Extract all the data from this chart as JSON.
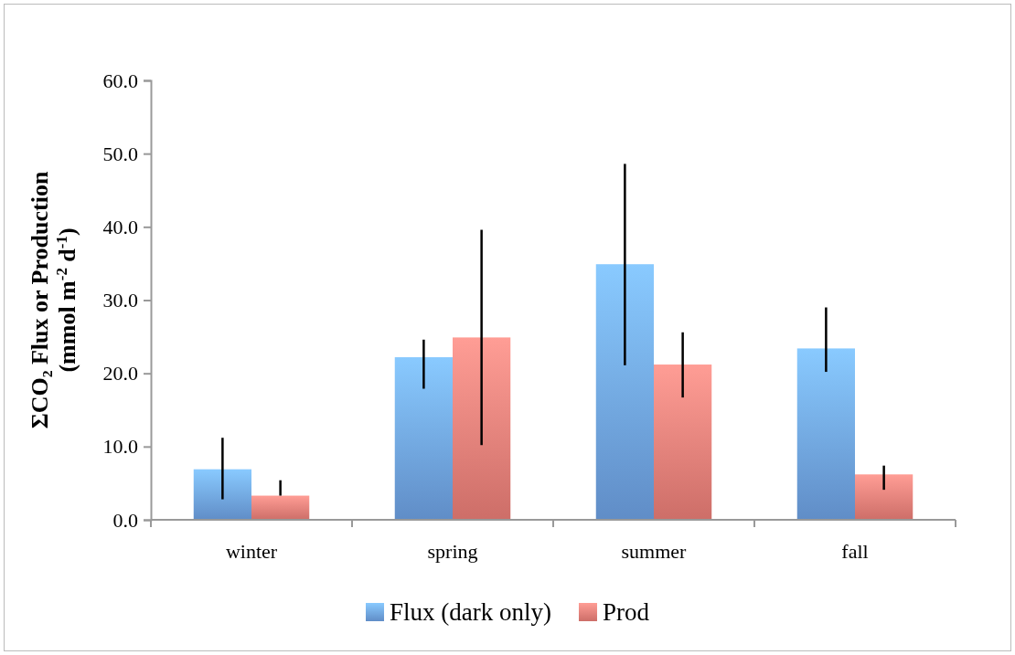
{
  "chart_data": {
    "type": "bar",
    "ylabel": "ΣCO₂ Flux or Production\n(mmol m$^{-2}$ d$^{-1}$)",
    "categories": [
      "winter",
      "spring",
      "summer",
      "fall"
    ],
    "series": [
      {
        "name": "Flux (dark only)",
        "color": "#6fa3e6",
        "values": [
          6.9,
          22.2,
          34.9,
          23.4
        ],
        "errors": [
          [
            2.8,
            11.2
          ],
          [
            17.9,
            24.6
          ],
          [
            21.1,
            48.6
          ],
          [
            20.2,
            29.0
          ]
        ]
      },
      {
        "name": "Prod",
        "color": "#ec7f78",
        "values": [
          3.3,
          24.9,
          21.2,
          6.2
        ],
        "errors": [
          [
            3.3,
            5.4
          ],
          [
            10.2,
            39.6
          ],
          [
            16.7,
            25.6
          ],
          [
            4.1,
            7.4
          ]
        ]
      }
    ],
    "ylim": [
      0,
      60
    ],
    "yticks": [
      {
        "value": 0,
        "label": "0.0"
      },
      {
        "value": 10,
        "label": "10.0"
      },
      {
        "value": 20,
        "label": "20.0"
      },
      {
        "value": 30,
        "label": "30.0"
      },
      {
        "value": 40,
        "label": "40.0"
      },
      {
        "value": 50,
        "label": "50.0"
      },
      {
        "value": 60,
        "label": "60.0"
      }
    ],
    "grid": false,
    "legend": "bottom"
  }
}
